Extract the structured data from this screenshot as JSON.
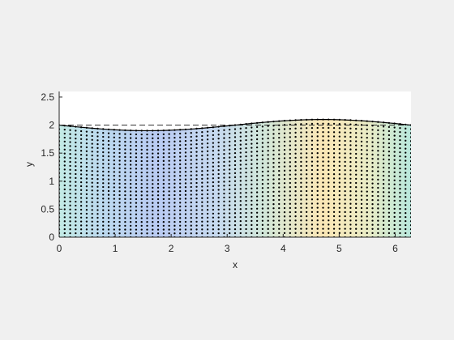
{
  "chart_data": {
    "type": "scatter",
    "title": "",
    "xlabel": "x",
    "ylabel": "y",
    "xlim": [
      0,
      6.2832
    ],
    "ylim": [
      0,
      2.6
    ],
    "xticks": [
      0,
      1,
      2,
      3,
      4,
      5,
      6
    ],
    "yticks": [
      0,
      0.5,
      1,
      1.5,
      2,
      2.5
    ],
    "xtick_labels": [
      "0",
      "1",
      "2",
      "3",
      "4",
      "5",
      "6"
    ],
    "ytick_labels": [
      "0",
      "0.5",
      "1",
      "1.5",
      "2",
      "2.5"
    ],
    "grid": false,
    "free_surface": {
      "description_function": "y = 2 - 0.1*sin(x)",
      "x": [
        0,
        0.5,
        1,
        1.5708,
        2,
        2.5,
        3,
        3.5,
        4,
        4.7124,
        5,
        5.5,
        6,
        6.2832
      ],
      "y": [
        2.0,
        1.952,
        1.916,
        1.9,
        1.909,
        1.94,
        1.986,
        2.035,
        2.076,
        2.1,
        2.096,
        2.071,
        2.028,
        2.0
      ]
    },
    "reference_level": {
      "y": 2.0,
      "style": "dashed"
    },
    "node_grid": {
      "columns": 64,
      "rows": 28,
      "color": "#000000"
    },
    "fill_gradient": {
      "low_color": "#b8cdf3",
      "mid_color": "#b7e8dc",
      "high_color": "#fde7b0"
    }
  }
}
